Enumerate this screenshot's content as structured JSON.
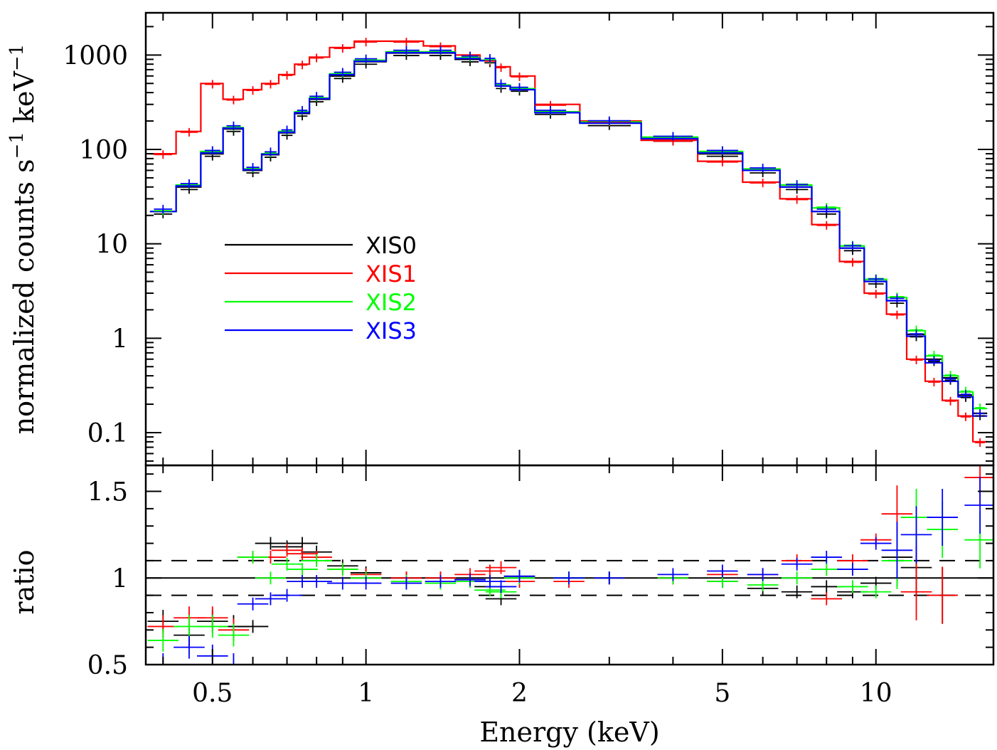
{
  "chart_data": [
    {
      "panel": "spectrum",
      "type": "line",
      "x_scale": "log",
      "y_scale": "log",
      "xlim": [
        0.37,
        17.0
      ],
      "ylim": [
        0.045,
        2800
      ],
      "ylabel": "normalized counts s",
      "ylabel_parts": [
        "normalized counts s",
        "−1",
        " keV",
        "−1"
      ],
      "yticks": [
        0.1,
        1,
        10,
        100,
        1000
      ],
      "ytick_labels": [
        "0.1",
        "1",
        "10",
        "100",
        "1000"
      ],
      "legend_position": "upper-left",
      "x": [
        0.4,
        0.45,
        0.5,
        0.55,
        0.6,
        0.65,
        0.7,
        0.75,
        0.8,
        0.9,
        1.0,
        1.2,
        1.4,
        1.6,
        1.75,
        1.84,
        2.0,
        2.3,
        3.0,
        4.0,
        5.0,
        6.0,
        7.0,
        8.0,
        9.0,
        10.0,
        11.0,
        12.0,
        13.0,
        14.0,
        15.0,
        16.0
      ],
      "series": [
        {
          "name": "XIS0",
          "color": "#000000",
          "values": [
            22,
            40,
            90,
            165,
            60,
            88,
            150,
            240,
            340,
            600,
            850,
            1050,
            1050,
            900,
            880,
            470,
            440,
            250,
            190,
            130,
            90,
            60,
            40,
            22,
            9,
            4,
            2.5,
            1.1,
            0.6,
            0.38,
            0.25,
            0.16
          ]
        },
        {
          "name": "XIS1",
          "color": "#ff0000",
          "values": [
            90,
            155,
            500,
            340,
            430,
            500,
            620,
            800,
            950,
            1200,
            1400,
            1400,
            1250,
            1000,
            880,
            750,
            600,
            300,
            200,
            125,
            75,
            45,
            30,
            16,
            6.5,
            3,
            1.8,
            0.6,
            0.35,
            0.22,
            0.15,
            0.08
          ]
        },
        {
          "name": "XIS2",
          "color": "#00ff00",
          "values": [
            22,
            42,
            95,
            170,
            62,
            90,
            155,
            250,
            350,
            630,
            880,
            1080,
            1080,
            930,
            880,
            480,
            440,
            250,
            195,
            135,
            95,
            62,
            42,
            24,
            9.5,
            4.2,
            2.7,
            1.2,
            0.65,
            0.4,
            0.27,
            0.18
          ]
        },
        {
          "name": "XIS3",
          "color": "#0000ff",
          "values": [
            22,
            41,
            92,
            168,
            61,
            89,
            152,
            245,
            345,
            620,
            860,
            1060,
            1060,
            920,
            870,
            470,
            430,
            245,
            190,
            130,
            92,
            60,
            40,
            22,
            9,
            4,
            2.5,
            1.05,
            0.55,
            0.35,
            0.24,
            0.15
          ]
        }
      ]
    },
    {
      "panel": "ratio",
      "type": "scatter",
      "x_scale": "log",
      "xlim": [
        0.37,
        17.0
      ],
      "ylim": [
        0.5,
        1.65
      ],
      "xlabel": "Energy (keV)",
      "ylabel": "ratio",
      "xticks": [
        0.5,
        1,
        2,
        5,
        10
      ],
      "xtick_labels": [
        "0.5",
        "1",
        "2",
        "5",
        "10"
      ],
      "yticks": [
        0.5,
        1,
        1.5
      ],
      "ytick_labels": [
        "0.5",
        "1",
        "1.5"
      ],
      "reference_lines": [
        {
          "y": 1.0,
          "style": "solid"
        },
        {
          "y": 1.1,
          "style": "dashed"
        },
        {
          "y": 0.9,
          "style": "dashed"
        }
      ],
      "series": [
        {
          "name": "XIS0",
          "color": "#000000",
          "x": [
            0.4,
            0.45,
            0.5,
            0.55,
            0.6,
            0.65,
            0.7,
            0.75,
            0.8,
            0.9,
            1.0,
            1.2,
            1.4,
            1.6,
            1.75,
            1.84,
            2.0,
            2.5,
            3.0,
            4.0,
            5.0,
            6.0,
            7.0,
            8.0,
            9.0,
            10.0,
            11.0,
            12.0,
            13.5
          ],
          "y": [
            0.75,
            0.67,
            0.75,
            0.72,
            0.72,
            1.2,
            1.18,
            1.2,
            1.15,
            1.07,
            1.03,
            1.0,
            1.0,
            0.99,
            0.95,
            0.88,
            1.01,
            1.0,
            1.0,
            1.0,
            0.98,
            0.94,
            0.92,
            0.95,
            0.92,
            0.97,
            1.12,
            1.06,
            0.9
          ]
        },
        {
          "name": "XIS1",
          "color": "#ff0000",
          "x": [
            0.4,
            0.45,
            0.5,
            0.55,
            0.6,
            0.65,
            0.7,
            0.75,
            0.8,
            0.9,
            1.0,
            1.2,
            1.4,
            1.6,
            1.75,
            1.84,
            2.0,
            2.5,
            3.0,
            4.0,
            5.0,
            6.0,
            7.0,
            8.0,
            9.0,
            10.0,
            11.0,
            12.0,
            13.5,
            16.0
          ],
          "y": [
            0.72,
            0.77,
            0.77,
            0.7,
            1.12,
            1.12,
            1.16,
            1.14,
            1.12,
            1.05,
            1.02,
            1.0,
            1.0,
            1.02,
            1.04,
            1.06,
            0.98,
            0.98,
            1.0,
            1.0,
            1.02,
            1.02,
            1.1,
            0.88,
            1.1,
            1.22,
            1.37,
            0.92,
            0.9,
            1.58
          ]
        },
        {
          "name": "XIS2",
          "color": "#00ff00",
          "x": [
            0.4,
            0.45,
            0.5,
            0.55,
            0.6,
            0.65,
            0.7,
            0.75,
            0.8,
            0.9,
            1.0,
            1.2,
            1.4,
            1.6,
            1.75,
            1.84,
            2.0,
            2.5,
            3.0,
            4.0,
            5.0,
            6.0,
            7.0,
            8.0,
            9.0,
            10.0,
            11.0,
            12.0,
            13.5,
            16.0
          ],
          "y": [
            0.64,
            0.72,
            0.72,
            0.67,
            1.12,
            1.0,
            1.08,
            1.05,
            1.1,
            1.05,
            1.0,
            0.98,
            0.97,
            0.98,
            0.93,
            0.92,
            1.0,
            1.0,
            1.0,
            1.0,
            0.98,
            0.96,
            1.0,
            1.05,
            0.95,
            0.92,
            1.1,
            1.35,
            1.28,
            1.22
          ]
        },
        {
          "name": "XIS3",
          "color": "#0000ff",
          "x": [
            0.4,
            0.45,
            0.5,
            0.55,
            0.6,
            0.65,
            0.7,
            0.75,
            0.8,
            0.9,
            1.0,
            1.2,
            1.4,
            1.6,
            1.75,
            1.84,
            2.0,
            2.5,
            3.0,
            4.0,
            5.0,
            6.0,
            7.0,
            8.0,
            9.0,
            10.0,
            11.0,
            12.0,
            13.5,
            16.0
          ],
          "y": [
            0.5,
            0.6,
            0.55,
            0.5,
            0.85,
            0.88,
            0.9,
            0.98,
            0.98,
            0.97,
            0.97,
            0.97,
            0.98,
            0.99,
            0.98,
            0.95,
            1.01,
            1.0,
            1.0,
            1.02,
            1.04,
            1.02,
            1.08,
            1.12,
            1.05,
            1.2,
            1.16,
            1.25,
            1.35,
            1.42
          ]
        }
      ]
    }
  ]
}
